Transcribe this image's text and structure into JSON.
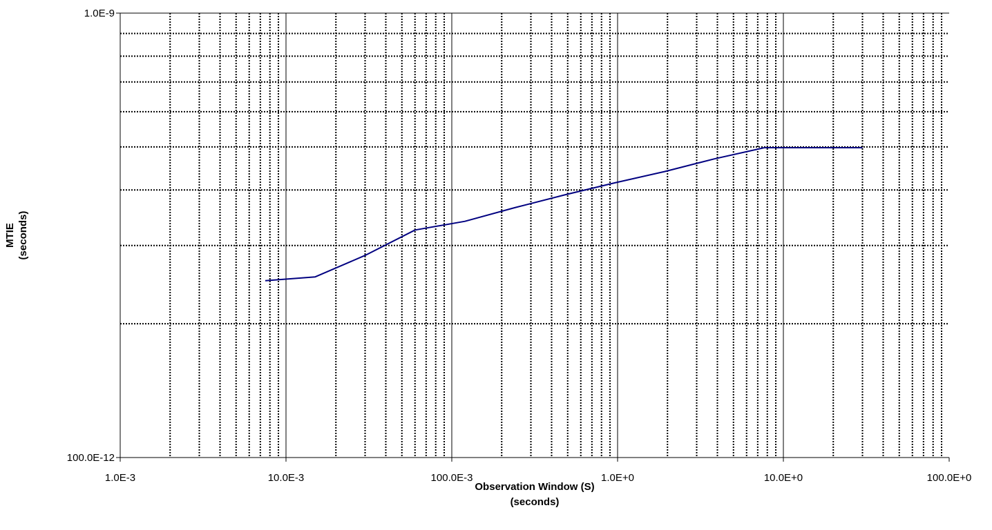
{
  "chart_data": {
    "type": "line",
    "title": "",
    "xlabel": [
      "Observation Window (S)",
      "(seconds)"
    ],
    "ylabel": [
      "MTIE",
      "(seconds)"
    ],
    "x_scale": "log",
    "y_scale": "log",
    "xlim": [
      0.001,
      100
    ],
    "ylim": [
      1e-10,
      1e-09
    ],
    "grid": true,
    "legend": "none",
    "x_tick_labels": [
      "1.0E-3",
      "10.0E-3",
      "100.0E-3",
      "1.0E+0",
      "10.0E+0",
      "100.0E+0"
    ],
    "y_tick_labels": [
      "100.0E-12",
      "1.0E-9"
    ],
    "series": [
      {
        "color": "#000080",
        "x": [
          0.0075,
          0.015,
          0.03,
          0.06,
          0.12,
          0.24,
          0.48,
          0.96,
          1.92,
          3.84,
          7.68,
          30
        ],
        "y": [
          2.5e-10,
          2.55e-10,
          2.85e-10,
          3.25e-10,
          3.4e-10,
          3.65e-10,
          3.9e-10,
          4.15e-10,
          4.4e-10,
          4.7e-10,
          4.98e-10,
          4.98e-10
        ]
      }
    ]
  }
}
